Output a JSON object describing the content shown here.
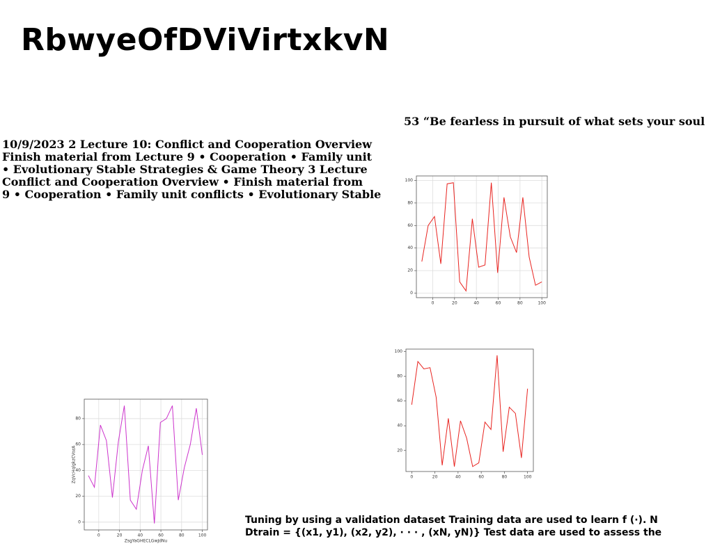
{
  "title": "RbwyeOfDViVirtxkvN",
  "quote": "53 “Be fearless in pursuit of what sets your soul",
  "paragraph": [
    "10/9/2023 2 Lecture 10: Conflict and Cooperation Overview",
    "Finish material from Lecture 9 • Cooperation • Family unit",
    "• Evolutionary Stable Strategies & Game Theory 3 Lecture",
    "Conflict and Cooperation Overview • Finish material from",
    "9 • Cooperation • Family unit conflicts • Evolutionary Stable"
  ],
  "footer": [
    "Tuning by using a validation dataset Training data are used to learn f (·). N",
    "Dtrain = {(x1, y1), (x2, y2), · · · , (xN, yN)} Test data are used to assess the"
  ],
  "chart_data": [
    {
      "type": "line",
      "color": "#e8231f",
      "grid": true,
      "x": [
        -10,
        -4.2,
        1.6,
        7.4,
        13.2,
        18.9,
        24.7,
        30.5,
        36.3,
        42.1,
        47.9,
        53.7,
        59.5,
        65.3,
        71.1,
        76.8,
        82.6,
        88.4,
        94.2,
        100
      ],
      "values": [
        28,
        60,
        68,
        26,
        97,
        98,
        10,
        2,
        66,
        23,
        25,
        98,
        18,
        85,
        50,
        36,
        85,
        32,
        7,
        10
      ],
      "xlim": [
        -15,
        105
      ],
      "ylim": [
        -4,
        104
      ],
      "xticks": [
        0,
        20,
        40,
        60,
        80,
        100
      ],
      "yticks": [
        0,
        20,
        40,
        60,
        80,
        100
      ]
    },
    {
      "type": "line",
      "color": "#e8231f",
      "grid": false,
      "x": [
        0,
        5.3,
        10.5,
        15.8,
        21.1,
        26.3,
        31.6,
        36.8,
        42.1,
        47.4,
        52.6,
        57.9,
        63.2,
        68.4,
        73.7,
        78.9,
        84.2,
        89.5,
        94.7,
        100
      ],
      "values": [
        57,
        92,
        86,
        87,
        63,
        8,
        46,
        7,
        44,
        30,
        7,
        10,
        43,
        37,
        97,
        19,
        55,
        50,
        14,
        70
      ],
      "xlim": [
        -5,
        105
      ],
      "ylim": [
        3,
        102
      ],
      "xticks": [
        0,
        20,
        40,
        60,
        80,
        100
      ],
      "yticks": [
        20,
        40,
        60,
        80,
        100
      ]
    },
    {
      "type": "line",
      "color": "#cc33cc",
      "grid": true,
      "xlabel": "ZsgYaGHECLGwJdNu",
      "ylabel": "ZqVcHqlgkzCVozA",
      "x": [
        -10,
        -4.2,
        1.6,
        7.4,
        13.2,
        18.9,
        24.7,
        30.5,
        36.3,
        42.1,
        47.9,
        53.7,
        59.5,
        65.3,
        71.1,
        76.8,
        82.6,
        88.4,
        94.2,
        100
      ],
      "values": [
        36,
        27,
        75,
        63,
        19,
        62,
        90,
        17,
        10,
        40,
        59,
        -1,
        77,
        80,
        90,
        17,
        42,
        60,
        88,
        52
      ],
      "xlim": [
        -14,
        105
      ],
      "ylim": [
        -6,
        95
      ],
      "xticks": [
        0,
        20,
        40,
        60,
        80,
        100
      ],
      "yticks": [
        0,
        20,
        40,
        60,
        80
      ]
    }
  ]
}
